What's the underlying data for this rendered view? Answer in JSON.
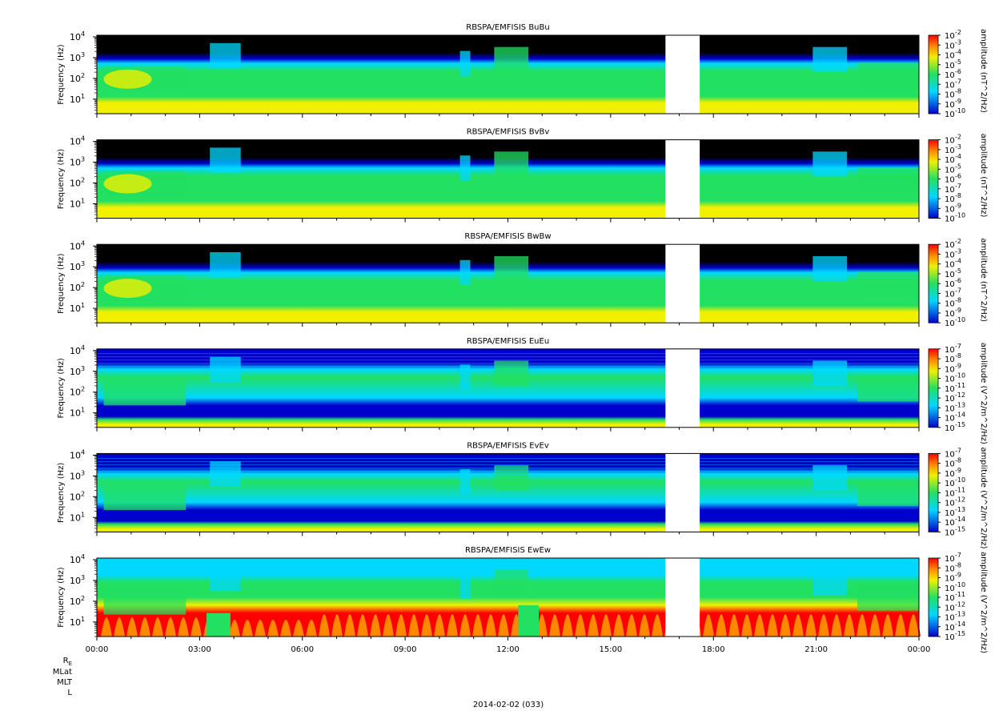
{
  "chart_data": [
    {
      "type": "heatmap",
      "title": "RBSPA/EMFISIS  BuBu",
      "ylabel": "Frequency (Hz)",
      "colorbar_label": "amplitude (nT^2/Hz)",
      "yscale": "log",
      "ylim": [
        2,
        12000
      ],
      "y_ticks": [
        "10",
        "10",
        "10",
        "10"
      ],
      "y_tick_exponents": [
        "1",
        "2",
        "3",
        "4"
      ],
      "colorbar_ticks": [
        "10",
        "10",
        "10",
        "10",
        "10",
        "10",
        "10",
        "10",
        "10"
      ],
      "colorbar_exponents": [
        "-2",
        "-3",
        "-4",
        "-5",
        "-6",
        "-7",
        "-8",
        "-9",
        "-10"
      ],
      "zlim_log": [
        -10,
        -2
      ],
      "gap_hours": [
        16.6,
        17.6
      ],
      "variant": "B"
    },
    {
      "type": "heatmap",
      "title": "RBSPA/EMFISIS  BvBv",
      "ylabel": "Frequency (Hz)",
      "colorbar_label": "amplitude (nT^2/Hz)",
      "yscale": "log",
      "ylim": [
        2,
        12000
      ],
      "y_ticks": [
        "10",
        "10",
        "10",
        "10"
      ],
      "y_tick_exponents": [
        "1",
        "2",
        "3",
        "4"
      ],
      "colorbar_ticks": [
        "10",
        "10",
        "10",
        "10",
        "10",
        "10",
        "10",
        "10",
        "10"
      ],
      "colorbar_exponents": [
        "-2",
        "-3",
        "-4",
        "-5",
        "-6",
        "-7",
        "-8",
        "-9",
        "-10"
      ],
      "zlim_log": [
        -10,
        -2
      ],
      "gap_hours": [
        16.6,
        17.6
      ],
      "variant": "B"
    },
    {
      "type": "heatmap",
      "title": "RBSPA/EMFISIS  BwBw",
      "ylabel": "Frequency (Hz)",
      "colorbar_label": "amplitude (nT^2/Hz)",
      "yscale": "log",
      "ylim": [
        2,
        12000
      ],
      "y_ticks": [
        "10",
        "10",
        "10",
        "10"
      ],
      "y_tick_exponents": [
        "1",
        "2",
        "3",
        "4"
      ],
      "colorbar_ticks": [
        "10",
        "10",
        "10",
        "10",
        "10",
        "10",
        "10",
        "10",
        "10"
      ],
      "colorbar_exponents": [
        "-2",
        "-3",
        "-4",
        "-5",
        "-6",
        "-7",
        "-8",
        "-9",
        "-10"
      ],
      "zlim_log": [
        -10,
        -2
      ],
      "gap_hours": [
        16.6,
        17.6
      ],
      "variant": "B"
    },
    {
      "type": "heatmap",
      "title": "RBSPA/EMFISIS  EuEu",
      "ylabel": "Frequency (Hz)",
      "colorbar_label": "amplitude (V^2/m^2/Hz)",
      "yscale": "log",
      "ylim": [
        2,
        12000
      ],
      "y_ticks": [
        "10",
        "10",
        "10",
        "10"
      ],
      "y_tick_exponents": [
        "1",
        "2",
        "3",
        "4"
      ],
      "colorbar_ticks": [
        "10",
        "10",
        "10",
        "10",
        "10",
        "10",
        "10",
        "10",
        "10"
      ],
      "colorbar_exponents": [
        "-7",
        "-8",
        "-9",
        "-10",
        "-11",
        "-12",
        "-13",
        "-14",
        "-15"
      ],
      "zlim_log": [
        -15,
        -7
      ],
      "gap_hours": [
        16.6,
        17.6
      ],
      "variant": "E"
    },
    {
      "type": "heatmap",
      "title": "RBSPA/EMFISIS  EvEv",
      "ylabel": "Frequency (Hz)",
      "colorbar_label": "amplitude (V^2/m^2/Hz)",
      "yscale": "log",
      "ylim": [
        2,
        12000
      ],
      "y_ticks": [
        "10",
        "10",
        "10",
        "10"
      ],
      "y_tick_exponents": [
        "1",
        "2",
        "3",
        "4"
      ],
      "colorbar_ticks": [
        "10",
        "10",
        "10",
        "10",
        "10",
        "10",
        "10",
        "10",
        "10"
      ],
      "colorbar_exponents": [
        "-7",
        "-8",
        "-9",
        "-10",
        "-11",
        "-12",
        "-13",
        "-14",
        "-15"
      ],
      "zlim_log": [
        -15,
        -7
      ],
      "gap_hours": [
        16.6,
        17.6
      ],
      "variant": "E"
    },
    {
      "type": "heatmap",
      "title": "RBSPA/EMFISIS  EwEw",
      "ylabel": "Frequency (Hz)",
      "colorbar_label": "amplitude (V^2/m^2/Hz)",
      "yscale": "log",
      "ylim": [
        2,
        12000
      ],
      "y_ticks": [
        "10",
        "10",
        "10",
        "10"
      ],
      "y_tick_exponents": [
        "1",
        "2",
        "3",
        "4"
      ],
      "colorbar_ticks": [
        "10",
        "10",
        "10",
        "10",
        "10",
        "10",
        "10",
        "10",
        "10"
      ],
      "colorbar_exponents": [
        "-7",
        "-8",
        "-9",
        "-10",
        "-11",
        "-12",
        "-13",
        "-14",
        "-15"
      ],
      "zlim_log": [
        -15,
        -7
      ],
      "gap_hours": [
        16.6,
        17.6
      ],
      "variant": "Ew"
    }
  ],
  "x_axis": {
    "xlim_hours": [
      0,
      24
    ],
    "tick_labels": [
      "00:00",
      "03:00",
      "06:00",
      "09:00",
      "12:00",
      "15:00",
      "18:00",
      "21:00",
      "00:00"
    ]
  },
  "ephemeris_labels": [
    "R",
    "MLat",
    "MLT",
    "L"
  ],
  "ephemeris_subscript": "E",
  "date_label": "2014-02-02 (033)",
  "colors": {
    "black": "#000000",
    "blue": "#0000cc",
    "cyan": "#00d8ff",
    "green": "#22e060",
    "yellow": "#f0f000",
    "orange": "#ff8800",
    "red": "#ff0000"
  }
}
